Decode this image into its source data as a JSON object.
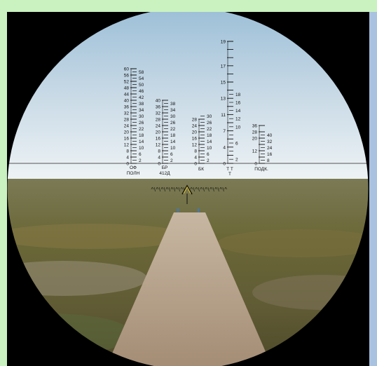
{
  "scales": [
    {
      "id": "of",
      "labels": [
        "ОФ",
        "ПОЛН"
      ],
      "left_values": [
        "0",
        "4",
        "8",
        "12",
        "16",
        "20",
        "24",
        "28",
        "32",
        "36",
        "40",
        "44",
        "48",
        "52",
        "56",
        "60"
      ],
      "right_values": [
        "2",
        "6",
        "10",
        "14",
        "18",
        "22",
        "26",
        "30",
        "34",
        "38",
        "42",
        "46",
        "50",
        "54",
        "58"
      ]
    },
    {
      "id": "br",
      "labels": [
        "БР",
        "412Д"
      ],
      "left_values": [
        "0",
        "4",
        "8",
        "12",
        "16",
        "20",
        "24",
        "28",
        "32",
        "36",
        "40"
      ],
      "right_values": [
        "2",
        "6",
        "10",
        "14",
        "18",
        "22",
        "26",
        "30",
        "34",
        "38"
      ]
    },
    {
      "id": "bk",
      "labels": [
        "БК"
      ],
      "left_values": [
        "0",
        "4",
        "8",
        "12",
        "16",
        "20",
        "24",
        "28"
      ],
      "right_values": [
        "2",
        "6",
        "10",
        "14",
        "18",
        "22",
        "26",
        "30"
      ]
    },
    {
      "id": "tt",
      "labels": [
        "Т Т",
        "Т"
      ],
      "left_values": [
        "0",
        "",
        "4",
        "",
        "7",
        "",
        "11",
        "",
        "13",
        "",
        "15",
        "",
        "17",
        "",
        "",
        "19"
      ],
      "right_values": [
        "2",
        "",
        "6",
        "",
        "10",
        "12",
        "14",
        "16",
        "18"
      ]
    },
    {
      "id": "podk",
      "labels": [
        "ПОДК."
      ],
      "left_values": [
        "0",
        "",
        "12",
        "",
        "20",
        "28",
        "36"
      ],
      "right_values": [
        "8",
        "16",
        "24",
        "32",
        "40"
      ]
    }
  ],
  "reticle": {
    "rangefinder_marks": "^\\^\\^\\^\\^\\^\\^\\^\\^\\^\\^\\^\\^\\^\\^\\^"
  },
  "colors": {
    "sky_top": "#a9c6dc",
    "sky_bottom": "#e4edf1",
    "ground": "#6b6a3a",
    "road": "#b8a48e",
    "reticle": "#111111"
  }
}
